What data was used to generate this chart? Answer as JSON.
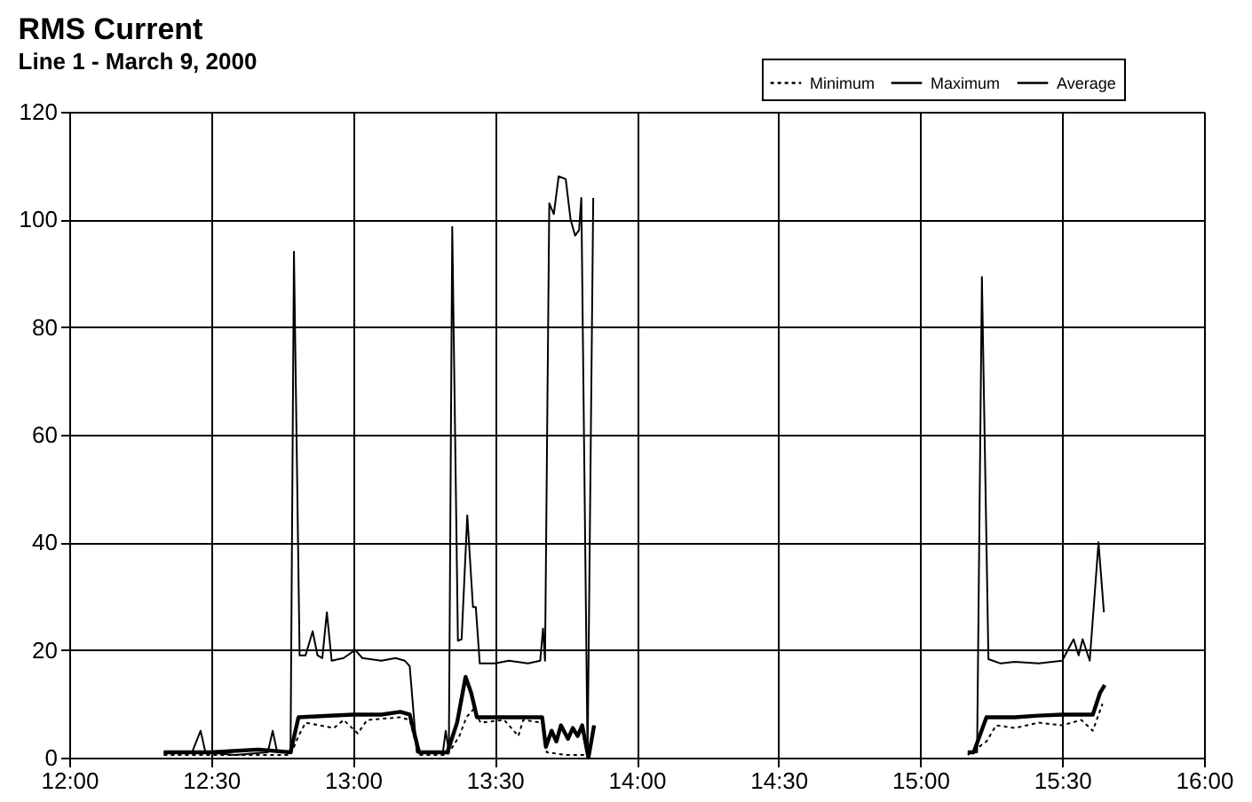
{
  "chart_data": {
    "type": "line",
    "title": "RMS Current",
    "subtitle": "Line 1 - March 9, 2000",
    "xlim": [
      12,
      16
    ],
    "xticks": [
      {
        "value": 12,
        "label": "12:00"
      },
      {
        "value": 12.5,
        "label": "12:30"
      },
      {
        "value": 13,
        "label": "13:00"
      },
      {
        "value": 13.5,
        "label": "13:30"
      },
      {
        "value": 14,
        "label": "14:00"
      },
      {
        "value": 14.5,
        "label": "14:30"
      },
      {
        "value": 15,
        "label": "15:00"
      },
      {
        "value": 15.5,
        "label": "15:30"
      },
      {
        "value": 16,
        "label": "16:00"
      }
    ],
    "ylim": [
      0,
      120
    ],
    "yticks": [
      0,
      20,
      40,
      60,
      80,
      100,
      120
    ],
    "grid": true,
    "legend": "top right",
    "marker": "none",
    "series": [
      {
        "name": "Minimum",
        "color": "#000000",
        "line_style": "dotted",
        "x": [
          12.333,
          12.583,
          12.78,
          12.808,
          12.833,
          12.883,
          12.933,
          12.967,
          13.017,
          13.05,
          13.167,
          13.2,
          13.233,
          13.333,
          13.375,
          13.4,
          13.425,
          13.45,
          13.533,
          13.583,
          13.6,
          13.667,
          13.683,
          13.75,
          13.833,
          14.5,
          15.167,
          15.233,
          15.267,
          15.333,
          15.417,
          15.5,
          15.567,
          15.608,
          15.642
        ],
        "values": [
          0.5,
          0.5,
          0.5,
          4,
          6.5,
          6,
          5.5,
          7,
          4.5,
          7,
          7.5,
          7,
          0.5,
          0.5,
          4,
          7.5,
          9,
          6.5,
          7,
          4,
          7,
          6.5,
          1,
          0.5,
          0.5,
          null,
          0.5,
          3,
          6,
          5.5,
          6.5,
          6,
          7,
          5,
          10
        ]
      },
      {
        "name": "Maximum",
        "color": "#000000",
        "line_style": "solid",
        "x": [
          12.333,
          12.433,
          12.463,
          12.48,
          12.583,
          12.7,
          12.717,
          12.733,
          12.78,
          12.792,
          12.812,
          12.833,
          12.858,
          12.875,
          12.892,
          12.908,
          12.925,
          12.967,
          13.008,
          13.033,
          13.1,
          13.15,
          13.183,
          13.2,
          13.225,
          13.317,
          13.327,
          13.338,
          13.35,
          13.37,
          13.383,
          13.403,
          13.423,
          13.433,
          13.447,
          13.5,
          13.55,
          13.617,
          13.66,
          13.67,
          13.677,
          13.692,
          13.708,
          13.725,
          13.75,
          13.767,
          13.783,
          13.797,
          13.805,
          13.827,
          13.847,
          14.5,
          15.167,
          15.2,
          15.217,
          15.24,
          15.283,
          15.333,
          15.417,
          15.5,
          15.54,
          15.558,
          15.572,
          15.597,
          15.628,
          15.647
        ],
        "values": [
          1,
          1,
          5,
          1,
          0.5,
          1,
          5,
          1,
          1,
          94,
          19,
          19,
          23.5,
          19,
          18.5,
          27,
          18,
          18.5,
          20,
          18.5,
          18,
          18.5,
          18,
          17,
          1,
          1,
          5,
          1,
          98.6,
          21.7,
          22,
          45,
          28,
          28,
          17.5,
          17.5,
          18,
          17.5,
          18,
          24,
          18,
          103,
          101,
          108,
          107.5,
          100,
          97,
          98,
          104,
          0,
          104,
          null,
          1,
          1,
          89.3,
          18.3,
          17.5,
          17.8,
          17.5,
          18,
          22,
          19,
          22,
          18,
          40,
          27
        ]
      },
      {
        "name": "Average",
        "color": "#000000",
        "line_style": "solid",
        "x": [
          12.333,
          12.5,
          12.667,
          12.78,
          12.808,
          12.917,
          13,
          13.1,
          13.167,
          13.2,
          13.233,
          13.333,
          13.367,
          13.397,
          13.417,
          13.437,
          13.5,
          13.583,
          13.667,
          13.68,
          13.7,
          13.717,
          13.733,
          13.758,
          13.775,
          13.792,
          13.808,
          13.83,
          13.85,
          14.5,
          15.167,
          15.188,
          15.233,
          15.333,
          15.417,
          15.5,
          15.608,
          15.633,
          15.65
        ],
        "values": [
          1,
          1,
          1.5,
          1,
          7.5,
          7.8,
          8,
          8,
          8.5,
          8,
          1,
          1,
          6.5,
          15,
          12,
          7.5,
          7.5,
          7.5,
          7.5,
          2,
          5,
          3,
          6,
          3.5,
          5.5,
          4,
          6,
          0,
          6,
          null,
          1,
          1,
          7.5,
          7.5,
          7.8,
          8,
          8,
          12,
          13.5
        ]
      }
    ]
  }
}
